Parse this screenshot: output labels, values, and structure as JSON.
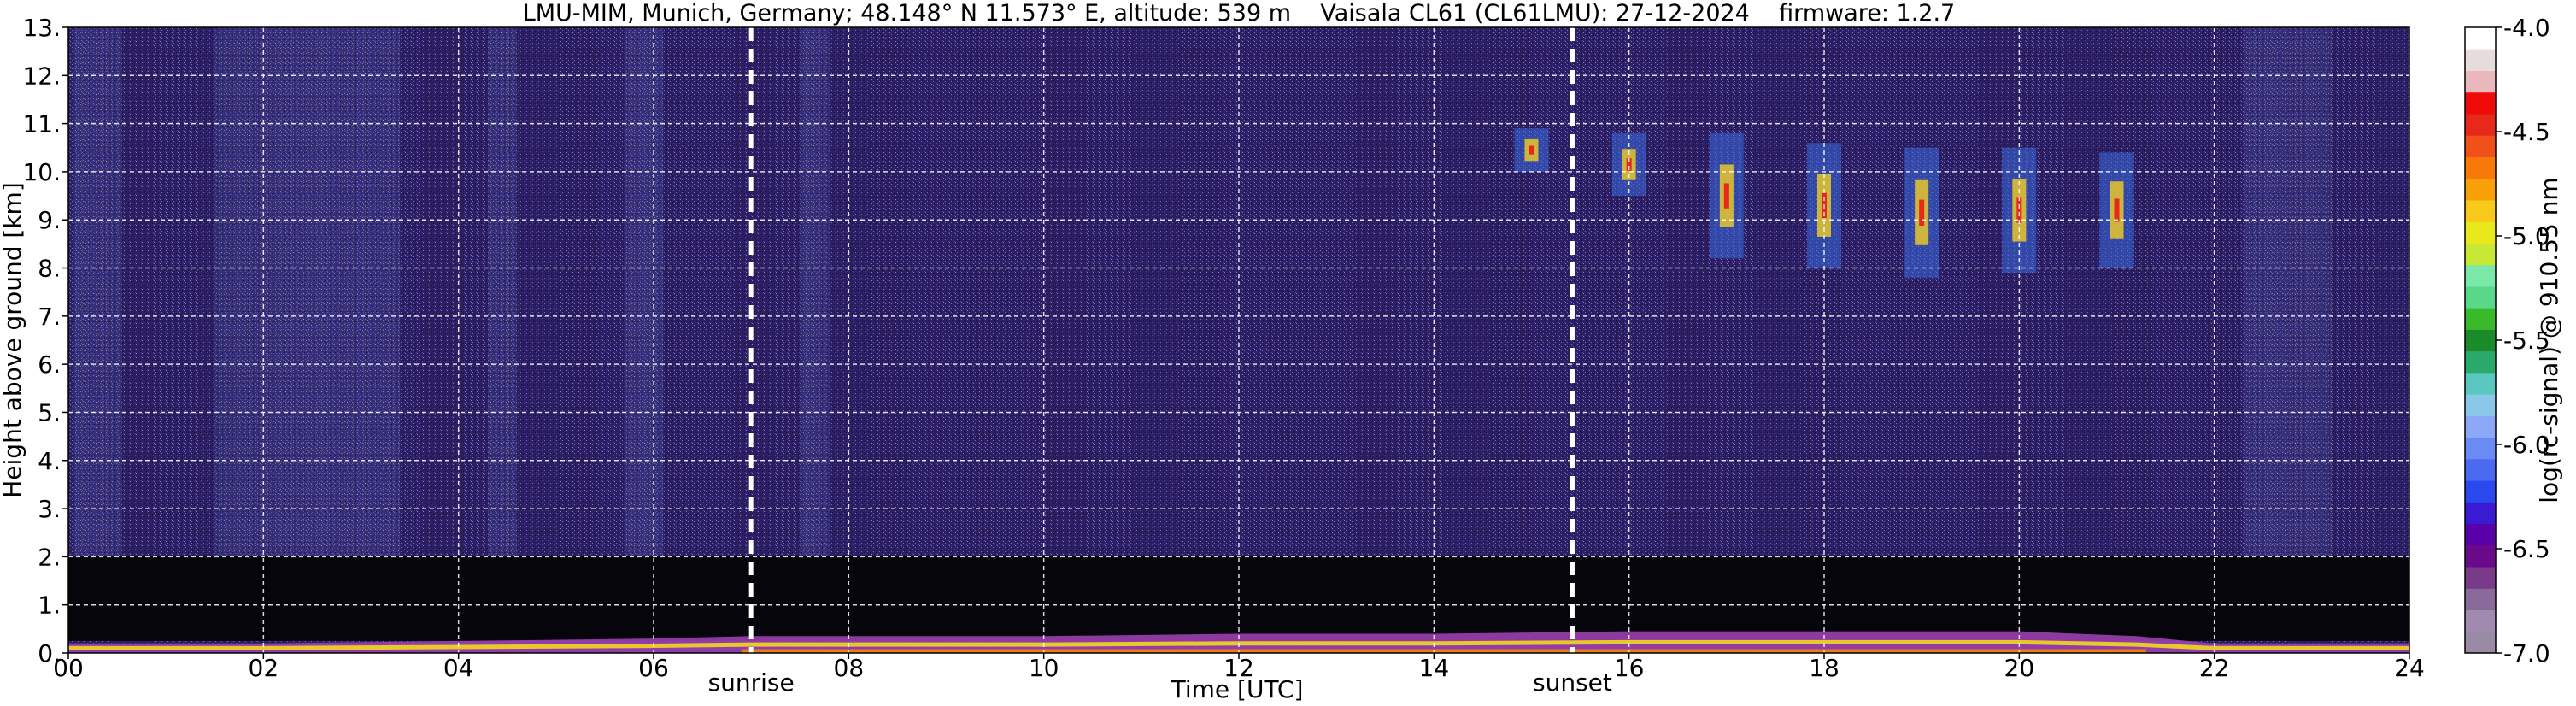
{
  "chart_data": {
    "type": "heatmap",
    "title": "LMU-MIM, Munich, Germany; 48.148° N 11.573° E, altitude: 539 m    Vaisala CL61 (CL61LMU): 27-12-2024    firmware: 1.2.7",
    "xlabel": "Time [UTC]",
    "ylabel": "Height above ground [km]",
    "xlim": [
      0,
      24
    ],
    "ylim": [
      0,
      13
    ],
    "x_ticks": [
      "00",
      "02",
      "04",
      "06",
      "08",
      "10",
      "12",
      "14",
      "16",
      "18",
      "20",
      "22",
      "24"
    ],
    "y_ticks": [
      "0.",
      "1.",
      "2.",
      "3.",
      "4.",
      "5.",
      "6.",
      "7.",
      "8.",
      "9.",
      "10.",
      "11.",
      "12.",
      "13."
    ],
    "grid": true,
    "annotations": [
      {
        "label": "sunrise",
        "x": 7.0
      },
      {
        "label": "sunset",
        "x": 15.42
      }
    ],
    "colorbar": {
      "label": "log(rc-signal) @ 910.55 nm",
      "range": [
        -7.0,
        -4.0
      ],
      "ticks": [
        "-4.0",
        "-4.5",
        "-5.0",
        "-5.5",
        "-6.0",
        "-6.5",
        "-7.0"
      ],
      "colors": [
        "#9a8aa6",
        "#a08ab0",
        "#8a6a9a",
        "#7a3a8a",
        "#6a0a8a",
        "#5a00a8",
        "#3a1ad2",
        "#2a4af0",
        "#4a6af2",
        "#6a8af4",
        "#8aa8f6",
        "#8ac8e8",
        "#5ac8c0",
        "#2aaa6a",
        "#1a8a2a",
        "#3aba2a",
        "#5ad88a",
        "#7ae8a8",
        "#c8e838",
        "#e8e81a",
        "#f8c81a",
        "#f8a00a",
        "#f8780a",
        "#f0501a",
        "#e8281a",
        "#f00a0a",
        "#eab8bc",
        "#e6dcdc",
        "#ffffff"
      ]
    },
    "series": [
      {
        "type": "boundary-layer",
        "x": [
          0.0,
          2.0,
          4.0,
          6.0,
          7.0,
          8.0,
          10.0,
          12.0,
          14.0,
          16.0,
          18.0,
          20.0,
          21.2,
          22.0,
          24.0
        ],
        "y_top": [
          0.2,
          0.2,
          0.25,
          0.3,
          0.35,
          0.35,
          0.35,
          0.4,
          0.4,
          0.45,
          0.45,
          0.45,
          0.35,
          0.2,
          0.2
        ]
      },
      {
        "type": "cirrus-cloud",
        "x": [
          15.0,
          16.0,
          17.0,
          18.0,
          19.0,
          20.0,
          21.0
        ],
        "base_km": [
          10.0,
          9.5,
          8.2,
          8.0,
          7.8,
          7.9,
          8.0
        ],
        "top_km": [
          10.9,
          10.8,
          10.8,
          10.6,
          10.5,
          10.5,
          10.4
        ]
      }
    ]
  }
}
